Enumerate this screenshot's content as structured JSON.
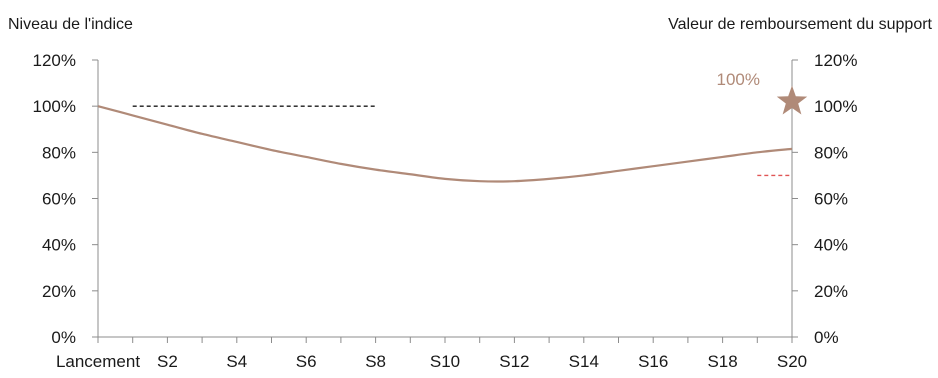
{
  "chart_data": {
    "type": "line",
    "left_axis_label": "Niveau de l'indice",
    "right_axis_label": "Valeur de remboursement du support",
    "x_tick_labels": [
      "Lancement",
      "S2",
      "S4",
      "S6",
      "S8",
      "S10",
      "S12",
      "S14",
      "S16",
      "S18",
      "S20"
    ],
    "y_tick_labels": [
      "0%",
      "20%",
      "40%",
      "60%",
      "80%",
      "100%",
      "120%"
    ],
    "ylim": [
      0,
      120
    ],
    "xlim": [
      0,
      20
    ],
    "series": [
      {
        "color": "#b08a78",
        "x": [
          0,
          1,
          2,
          3,
          4,
          5,
          6,
          7,
          8,
          9,
          10,
          11,
          12,
          13,
          14,
          15,
          16,
          17,
          18,
          19,
          20
        ],
        "values": [
          100,
          96,
          92,
          88,
          84.5,
          81,
          78,
          75,
          72.5,
          70.5,
          68.5,
          67.5,
          67.5,
          68.5,
          70,
          72,
          74,
          76,
          78,
          80,
          81.5
        ]
      }
    ],
    "reference_lines": [
      {
        "level": 100,
        "x_start": 1,
        "x_end": 8,
        "color": "#1a1a1a",
        "style": "dashed"
      },
      {
        "level": 70,
        "x_start": 19,
        "x_end": 20,
        "color": "#e05555",
        "style": "dashed"
      }
    ],
    "repayment_marker": {
      "x": 20,
      "value": 102,
      "label": "100%",
      "shape": "star",
      "color": "#b08a78"
    }
  }
}
